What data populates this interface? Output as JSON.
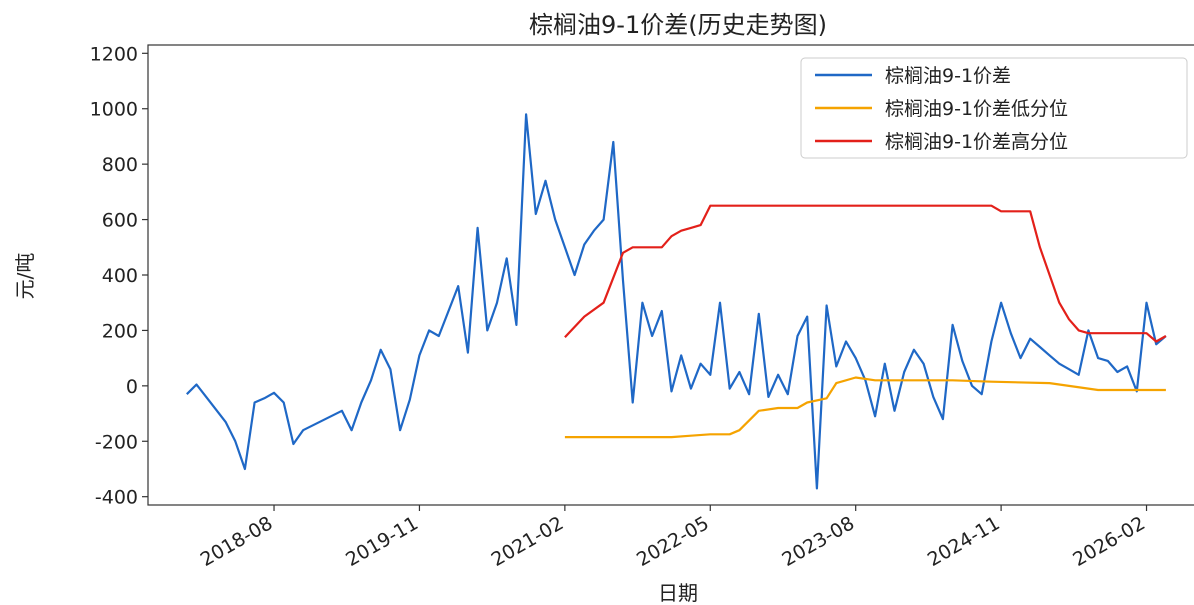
{
  "chart_data": {
    "type": "line",
    "title": "棕榈油9-1价差(历史走势图)",
    "xlabel": "日期",
    "ylabel": "元/吨",
    "ylim": [
      -430,
      1230
    ],
    "yticks": [
      -400,
      -200,
      0,
      200,
      400,
      600,
      800,
      1000,
      1200
    ],
    "xticks": [
      "2018-08",
      "2019-11",
      "2021-02",
      "2022-05",
      "2023-08",
      "2024-11",
      "2026-02"
    ],
    "xlim": [
      "2017-07",
      "2026-07"
    ],
    "grid": false,
    "legend_position": "top-right",
    "series": [
      {
        "name": "棕榈油9-1价差",
        "color": "#1f68c6",
        "x": [
          "2017-11",
          "2017-12",
          "2018-01",
          "2018-02",
          "2018-03",
          "2018-04",
          "2018-05",
          "2018-06",
          "2018-07",
          "2018-08",
          "2018-09",
          "2018-10",
          "2018-11",
          "2019-03",
          "2019-04",
          "2019-05",
          "2019-06",
          "2019-07",
          "2019-08",
          "2019-09",
          "2019-10",
          "2019-11",
          "2019-12",
          "2020-01",
          "2020-03",
          "2020-04",
          "2020-05",
          "2020-06",
          "2020-07",
          "2020-08",
          "2020-09",
          "2020-10",
          "2020-11",
          "2020-12",
          "2021-01",
          "2021-02",
          "2021-03",
          "2021-04",
          "2021-05",
          "2021-06",
          "2021-07",
          "2021-08",
          "2021-09",
          "2021-10",
          "2021-11",
          "2021-12",
          "2022-01",
          "2022-02",
          "2022-03",
          "2022-04",
          "2022-05",
          "2022-06",
          "2022-07",
          "2022-08",
          "2022-09",
          "2022-10",
          "2022-11",
          "2022-12",
          "2023-01",
          "2023-02",
          "2023-03",
          "2023-04",
          "2023-05",
          "2023-06",
          "2023-07",
          "2023-08",
          "2023-09",
          "2023-10",
          "2023-11",
          "2023-12",
          "2024-01",
          "2024-02",
          "2024-03",
          "2024-04",
          "2024-05",
          "2024-06",
          "2024-07",
          "2024-08",
          "2024-09",
          "2024-10",
          "2024-11",
          "2024-12",
          "2025-01",
          "2025-02",
          "2025-03",
          "2025-04",
          "2025-05",
          "2025-06",
          "2025-07",
          "2025-08",
          "2025-09",
          "2025-10",
          "2025-11",
          "2025-12",
          "2026-01",
          "2026-02",
          "2026-03",
          "2026-04"
        ],
        "values": [
          -30,
          5,
          -40,
          -85,
          -130,
          -200,
          -300,
          -60,
          -45,
          -25,
          -60,
          -210,
          -160,
          -90,
          -160,
          -60,
          20,
          130,
          60,
          -160,
          -50,
          110,
          200,
          180,
          360,
          120,
          570,
          200,
          300,
          460,
          220,
          980,
          620,
          740,
          600,
          500,
          400,
          510,
          560,
          600,
          880,
          380,
          -60,
          300,
          180,
          270,
          -20,
          110,
          -10,
          80,
          40,
          300,
          -10,
          50,
          -30,
          260,
          -40,
          40,
          -30,
          180,
          250,
          -370,
          290,
          70,
          160,
          100,
          20,
          -110,
          80,
          -90,
          50,
          130,
          80,
          -40,
          -120,
          220,
          90,
          0,
          -30,
          160,
          300,
          190,
          100,
          170,
          140,
          110,
          80,
          60,
          40,
          200,
          100,
          90,
          50,
          70,
          -20,
          300,
          150,
          180
        ]
      },
      {
        "name": "棕榈油9-1价差低分位",
        "color": "#f5a300",
        "x": [
          "2021-02",
          "2021-06",
          "2021-09",
          "2021-11",
          "2022-01",
          "2022-03",
          "2022-05",
          "2022-07",
          "2022-08",
          "2022-10",
          "2022-12",
          "2023-02",
          "2023-03",
          "2023-05",
          "2023-06",
          "2023-08",
          "2023-10",
          "2024-01",
          "2024-06",
          "2024-10",
          "2025-04",
          "2025-09",
          "2026-04"
        ],
        "values": [
          -185,
          -185,
          -185,
          -185,
          -185,
          -180,
          -175,
          -175,
          -160,
          -90,
          -80,
          -80,
          -60,
          -45,
          10,
          30,
          20,
          20,
          20,
          15,
          10,
          -15,
          -15
        ]
      },
      {
        "name": "棕榈油9-1价差高分位",
        "color": "#e3201a",
        "x": [
          "2021-02",
          "2021-04",
          "2021-06",
          "2021-08",
          "2021-09",
          "2021-10",
          "2021-11",
          "2021-12",
          "2022-01",
          "2022-02",
          "2022-03",
          "2022-04",
          "2022-05",
          "2022-07",
          "2022-09",
          "2022-11",
          "2023-01",
          "2023-04",
          "2023-08",
          "2023-12",
          "2024-04",
          "2024-08",
          "2024-10",
          "2024-11",
          "2025-02",
          "2025-03",
          "2025-04",
          "2025-05",
          "2025-06",
          "2025-07",
          "2025-08",
          "2025-09",
          "2025-10",
          "2025-12",
          "2026-02",
          "2026-03",
          "2026-04"
        ],
        "values": [
          175,
          250,
          300,
          480,
          500,
          500,
          500,
          500,
          540,
          560,
          570,
          580,
          650,
          650,
          650,
          650,
          650,
          650,
          650,
          650,
          650,
          650,
          650,
          630,
          630,
          500,
          400,
          300,
          240,
          200,
          190,
          190,
          190,
          190,
          190,
          160,
          180
        ]
      }
    ]
  }
}
